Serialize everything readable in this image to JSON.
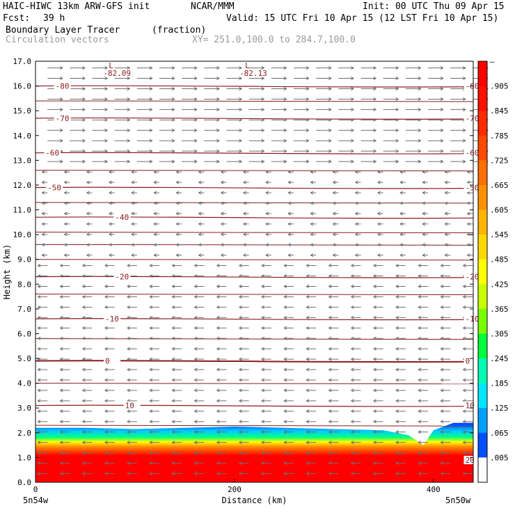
{
  "header": {
    "model": "HAIC-HIWC 13km ARW-GFS init",
    "center": "NCAR/MMM",
    "init": "Init: 00 UTC Thu 09 Apr 15",
    "fcst_label": "Fcst:",
    "fcst_value": "39 h",
    "valid": "Valid: 15 UTC Fri 10 Apr 15 (12 LST Fri 10 Apr 15)",
    "field": "Boundary Layer Tracer",
    "units": "(fraction)",
    "overlay": "Circulation vectors",
    "xy": "XY= 251.0,100.0 to 284.7,100.0"
  },
  "chart_data": {
    "type": "heatmap",
    "xlabel": "Distance (km)",
    "ylabel": "Height (km)",
    "xlim": [
      0,
      440
    ],
    "ylim": [
      0,
      17.0
    ],
    "x_ticks": [
      "0",
      "200",
      "400"
    ],
    "y_ticks": [
      "0.0",
      "1.0",
      "2.0",
      "3.0",
      "4.0",
      "5.0",
      "6.0",
      "7.0",
      "8.0",
      "9.0",
      "10.0",
      "11.0",
      "12.0",
      "13.0",
      "14.0",
      "15.0",
      "16.0",
      "17.0"
    ],
    "x_endpoints": {
      "left": "5n54w",
      "right": "5n50w"
    },
    "colorbar": {
      "labels": [
        "–",
        ".905",
        ".845",
        ".785",
        ".725",
        ".665",
        ".605",
        ".545",
        ".485",
        ".425",
        ".365",
        ".305",
        ".245",
        ".185",
        ".125",
        ".065",
        ".005"
      ],
      "colors": [
        "#ff0000",
        "#ff1000",
        "#ff2a00",
        "#ff4a00",
        "#ff6e00",
        "#ff9000",
        "#ffb400",
        "#ffd800",
        "#ffff00",
        "#c8ff00",
        "#78ff00",
        "#00ff3c",
        "#00ffb4",
        "#00e6ff",
        "#00a0ff",
        "#0050ff",
        "#ffffff"
      ]
    },
    "temperature_labels": [
      "-80",
      "-70",
      "-60",
      "-50",
      "-40",
      "-20",
      "-10",
      "0",
      "10",
      "20"
    ],
    "isotherm_heights_km": [
      16.0,
      14.7,
      13.3,
      11.9,
      10.7,
      8.3,
      6.6,
      4.9,
      3.1
    ],
    "lows": [
      {
        "mark": "L",
        "value": "-82.09",
        "x_km": 75
      },
      {
        "mark": "L",
        "value": "-82.13",
        "x_km": 212
      }
    ],
    "tracer_top_km": [
      [
        0,
        2.2
      ],
      [
        50,
        2.2
      ],
      [
        100,
        2.15
      ],
      [
        150,
        2.2
      ],
      [
        200,
        2.25
      ],
      [
        250,
        2.2
      ],
      [
        300,
        2.15
      ],
      [
        350,
        2.1
      ],
      [
        375,
        1.9
      ],
      [
        390,
        1.5
      ],
      [
        400,
        2.1
      ],
      [
        420,
        2.4
      ],
      [
        440,
        2.4
      ]
    ],
    "grid": false
  }
}
